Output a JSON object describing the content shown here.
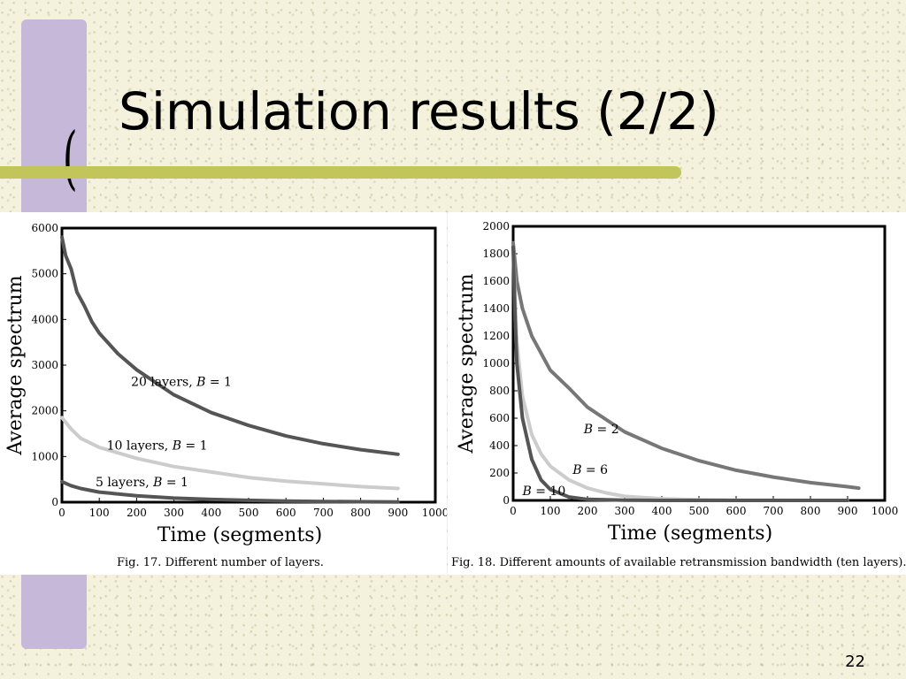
{
  "slide": {
    "title": "Simulation results (2/2)",
    "page_number": "22",
    "accent_colors": {
      "bar": "#c5b8d8",
      "underline": "#c2c65a",
      "background": "#f4f1dc"
    }
  },
  "chart_data": [
    {
      "type": "line",
      "caption": "Fig. 17.    Different number of layers.",
      "xlabel": "Time (segments)",
      "ylabel": "Average spectrum",
      "xlim": [
        0,
        1000
      ],
      "ylim": [
        0,
        6000
      ],
      "xticks": [
        0,
        100,
        200,
        300,
        400,
        500,
        600,
        700,
        800,
        900,
        1000
      ],
      "yticks": [
        0,
        1000,
        2000,
        3000,
        4000,
        5000,
        6000
      ],
      "grid": false,
      "series": [
        {
          "name": "20 layers, B = 1",
          "color": "#555555",
          "x": [
            0,
            10,
            25,
            40,
            60,
            80,
            100,
            150,
            200,
            300,
            400,
            500,
            600,
            700,
            800,
            900
          ],
          "y": [
            5800,
            5400,
            5100,
            4600,
            4300,
            3950,
            3700,
            3250,
            2900,
            2350,
            1960,
            1680,
            1450,
            1280,
            1150,
            1050
          ]
        },
        {
          "name": "10 layers, B = 1",
          "color": "#cccccc",
          "x": [
            0,
            25,
            50,
            100,
            200,
            300,
            400,
            500,
            600,
            700,
            800,
            900
          ],
          "y": [
            1850,
            1600,
            1400,
            1200,
            960,
            780,
            660,
            540,
            460,
            400,
            340,
            300
          ]
        },
        {
          "name": "5 layers, B = 1",
          "color": "#555555",
          "x": [
            0,
            25,
            50,
            100,
            200,
            300,
            400,
            500,
            600,
            700,
            800,
            900
          ],
          "y": [
            450,
            360,
            300,
            220,
            140,
            90,
            60,
            40,
            25,
            15,
            10,
            5
          ]
        }
      ],
      "annotations": [
        {
          "text": "20 layers, B = 1",
          "x": 185,
          "y": 2550
        },
        {
          "text": "10 layers, B = 1",
          "x": 120,
          "y": 1150
        },
        {
          "text": "5 layers, B = 1",
          "x": 90,
          "y": 350
        }
      ]
    },
    {
      "type": "line",
      "caption": "Fig. 18.    Different amounts of available retransmission bandwidth (ten layers).",
      "xlabel": "Time (segments)",
      "ylabel": "Average spectrum",
      "xlim": [
        0,
        1000
      ],
      "ylim": [
        0,
        2000
      ],
      "xticks": [
        0,
        100,
        200,
        300,
        400,
        500,
        600,
        700,
        800,
        900,
        1000
      ],
      "yticks": [
        0,
        200,
        400,
        600,
        800,
        1000,
        1200,
        1400,
        1600,
        1800,
        2000
      ],
      "grid": false,
      "series": [
        {
          "name": "B = 2",
          "color": "#777777",
          "x": [
            0,
            10,
            25,
            50,
            100,
            150,
            200,
            300,
            400,
            500,
            600,
            700,
            800,
            900,
            930
          ],
          "y": [
            1880,
            1600,
            1400,
            1200,
            950,
            820,
            680,
            500,
            380,
            290,
            220,
            170,
            130,
            100,
            90
          ]
        },
        {
          "name": "B = 6",
          "color": "#cccccc",
          "x": [
            0,
            10,
            25,
            50,
            75,
            100,
            150,
            200,
            250,
            300,
            400,
            500,
            600,
            700,
            800,
            900
          ],
          "y": [
            1850,
            1150,
            760,
            480,
            340,
            250,
            150,
            90,
            55,
            30,
            12,
            5,
            2,
            1,
            0,
            0
          ]
        },
        {
          "name": "B = 10",
          "color": "#555555",
          "x": [
            0,
            5,
            10,
            25,
            50,
            75,
            100,
            150,
            200,
            300,
            400,
            500,
            600,
            700,
            800,
            900
          ],
          "y": [
            1850,
            1350,
            1000,
            600,
            300,
            150,
            80,
            25,
            8,
            2,
            0,
            0,
            0,
            0,
            0,
            0
          ]
        }
      ],
      "annotations": [
        {
          "text": "B = 2",
          "x": 190,
          "y": 490
        },
        {
          "text": "B = 6",
          "x": 160,
          "y": 195
        },
        {
          "text": "B = 10",
          "x": 25,
          "y": 40
        }
      ]
    }
  ]
}
